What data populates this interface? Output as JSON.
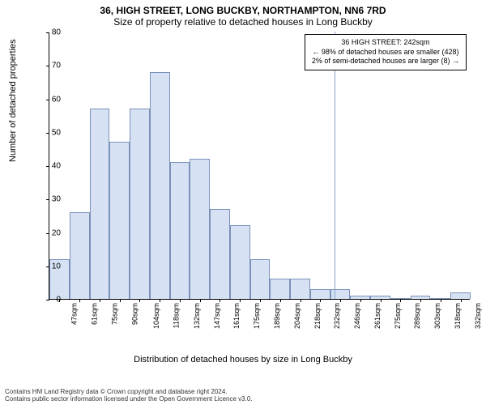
{
  "title_line1": "36, HIGH STREET, LONG BUCKBY, NORTHAMPTON, NN6 7RD",
  "title_line2": "Size of property relative to detached houses in Long Buckby",
  "y_axis_label": "Number of detached properties",
  "x_axis_label": "Distribution of detached houses by size in Long Buckby",
  "chart": {
    "type": "histogram",
    "ylim": [
      0,
      80
    ],
    "ytick_step": 10,
    "yticks": [
      0,
      10,
      20,
      30,
      40,
      50,
      60,
      70,
      80
    ],
    "x_categories": [
      "47sqm",
      "61sqm",
      "75sqm",
      "90sqm",
      "104sqm",
      "118sqm",
      "132sqm",
      "147sqm",
      "161sqm",
      "175sqm",
      "189sqm",
      "204sqm",
      "218sqm",
      "232sqm",
      "246sqm",
      "261sqm",
      "275sqm",
      "289sqm",
      "303sqm",
      "318sqm",
      "332sqm"
    ],
    "values": [
      12,
      26,
      57,
      47,
      57,
      68,
      41,
      42,
      27,
      22,
      12,
      6,
      6,
      3,
      3,
      1,
      1,
      0,
      1,
      0,
      2
    ],
    "bar_color": "#d6e2f3",
    "bar_border_color": "#7a92b8",
    "bar_width_ratio": 1.0,
    "indicator_position_index": 13.7,
    "indicator_color": "#8aa3c8",
    "background_color": "#ffffff",
    "axis_color": "#000000",
    "title_fontsize": 12,
    "label_fontsize": 11,
    "tick_fontsize": 10
  },
  "annotation": {
    "line1": "36 HIGH STREET: 242sqm",
    "line2": "← 98% of detached houses are smaller (428)",
    "line3": "2% of semi-detached houses are larger (8) →"
  },
  "footer": {
    "line1": "Contains HM Land Registry data © Crown copyright and database right 2024.",
    "line2": "Contains public sector information licensed under the Open Government Licence v3.0."
  }
}
